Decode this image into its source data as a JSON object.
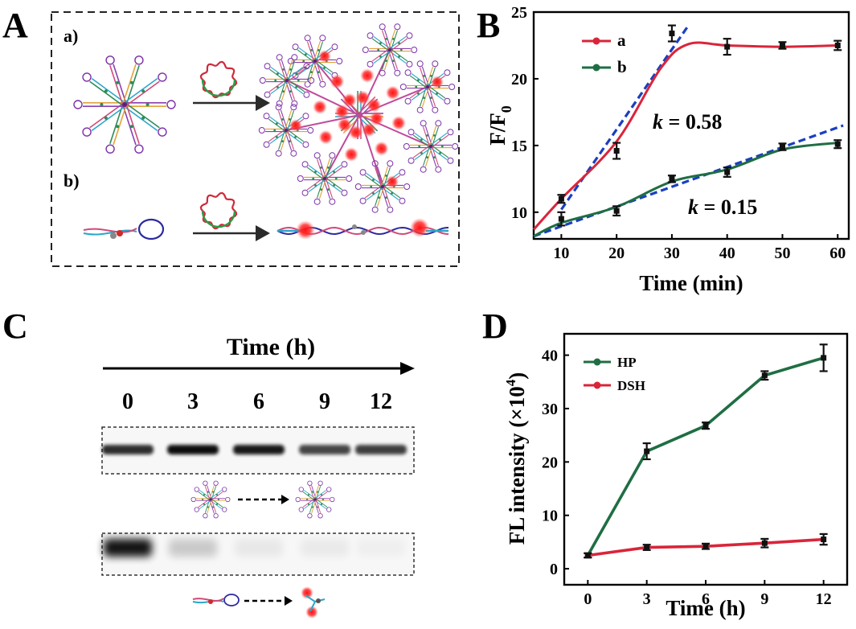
{
  "panels": {
    "A": {
      "letter": "A",
      "sub_a": "a)",
      "sub_b": "b)"
    },
    "B": {
      "letter": "B"
    },
    "C": {
      "letter": "C",
      "axis_title": "Time (h)",
      "lanes": [
        "0",
        "3",
        "6",
        "9",
        "12"
      ],
      "top_band_intensity": [
        0.82,
        0.95,
        0.9,
        0.72,
        0.75
      ],
      "bottom_band_intensity": [
        0.92,
        0.18,
        0.06,
        0.05,
        0.03
      ]
    },
    "D": {
      "letter": "D"
    }
  },
  "colors": {
    "red_curve": "#d9253a",
    "green_curve": "#1f6e43",
    "fit_dash": "#1a3fbf",
    "glow_red": "#ff2a2a"
  },
  "chart_data": [
    {
      "type": "line",
      "panel": "B",
      "ylabel_main": "F/F",
      "ylabel_sub": "0",
      "xlabel": "Time (min)",
      "xlim": [
        5,
        62
      ],
      "ylim": [
        8,
        25
      ],
      "xticks": [
        10,
        20,
        30,
        40,
        50,
        60
      ],
      "yticks": [
        10,
        15,
        20,
        25
      ],
      "legend_position": "top-left",
      "series": [
        {
          "name": "a",
          "color": "#d9253a",
          "x": [
            10,
            20,
            30,
            40,
            50,
            60
          ],
          "y": [
            11.0,
            14.6,
            23.4,
            22.4,
            22.5,
            22.5
          ],
          "err": [
            0.3,
            0.6,
            0.6,
            0.6,
            0.25,
            0.35
          ]
        },
        {
          "name": "b",
          "color": "#1f6e43",
          "x": [
            10,
            20,
            30,
            40,
            50,
            60
          ],
          "y": [
            9.5,
            10.1,
            12.5,
            13.0,
            14.9,
            15.1
          ],
          "err": [
            0.5,
            0.35,
            0.25,
            0.35,
            0.25,
            0.3
          ]
        }
      ],
      "fits": [
        {
          "label_k": "k",
          "label_value": " = 0.58",
          "x0": 10,
          "y0": 10.2,
          "x1": 33,
          "y1": 24.0
        },
        {
          "label_k": "k",
          "label_value": " = 0.15",
          "x0": 5,
          "y0": 8.2,
          "x1": 61,
          "y1": 16.5
        }
      ]
    },
    {
      "type": "line",
      "panel": "D",
      "ylabel_main": "FL intensity (×10",
      "ylabel_sup": "4",
      "ylabel_end": ")",
      "xlabel": "Time (h)",
      "xlim": [
        -1.2,
        13.2
      ],
      "ylim": [
        -3,
        44
      ],
      "xticks": [
        0,
        3,
        6,
        9,
        12
      ],
      "yticks": [
        0,
        10,
        20,
        30,
        40
      ],
      "legend_position": "top-left",
      "series": [
        {
          "name": "HP",
          "color": "#1f6e43",
          "x": [
            0,
            3,
            6,
            9,
            12
          ],
          "y": [
            2.5,
            22.0,
            26.8,
            36.2,
            39.5
          ],
          "err": [
            0.4,
            1.5,
            0.6,
            0.8,
            2.5
          ]
        },
        {
          "name": "DSH",
          "color": "#d9253a",
          "x": [
            0,
            3,
            6,
            9,
            12
          ],
          "y": [
            2.5,
            4.0,
            4.2,
            4.8,
            5.5
          ],
          "err": [
            0.4,
            0.5,
            0.5,
            0.8,
            1.0
          ]
        }
      ]
    }
  ]
}
